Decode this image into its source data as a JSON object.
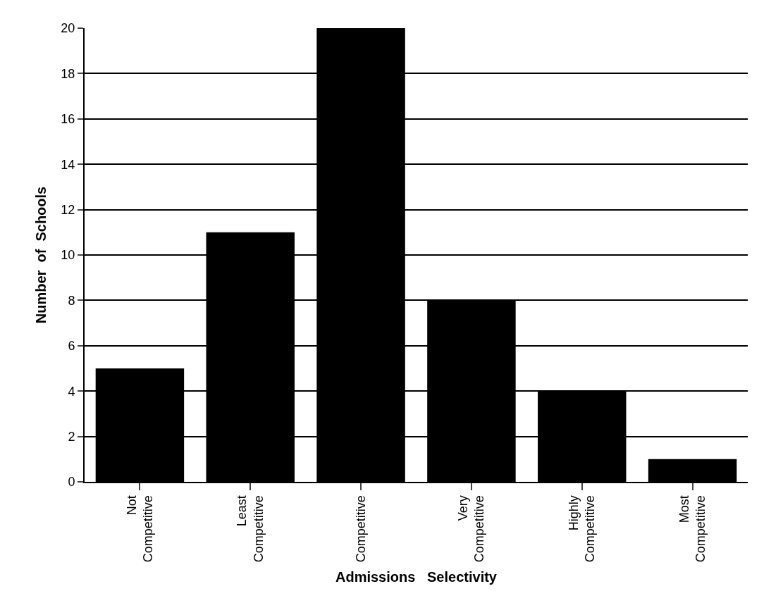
{
  "chart_data": {
    "type": "bar",
    "xlabel": "Admissions   Selectivity",
    "ylabel": "Number  of  Schools",
    "categories": [
      "Not\nCompetitive",
      "Least\nCompetitive",
      "Competitive",
      "Very\nCompetitive",
      "Highly\nCompetitive",
      "Most\nCompetitive"
    ],
    "values": [
      5,
      11,
      20,
      8,
      4,
      1
    ],
    "color": "#000000",
    "ylim": [
      0,
      20
    ],
    "yticks": [
      0,
      2,
      4,
      6,
      8,
      10,
      12,
      14,
      16,
      18,
      20
    ],
    "grid": "y",
    "legend": false
  }
}
